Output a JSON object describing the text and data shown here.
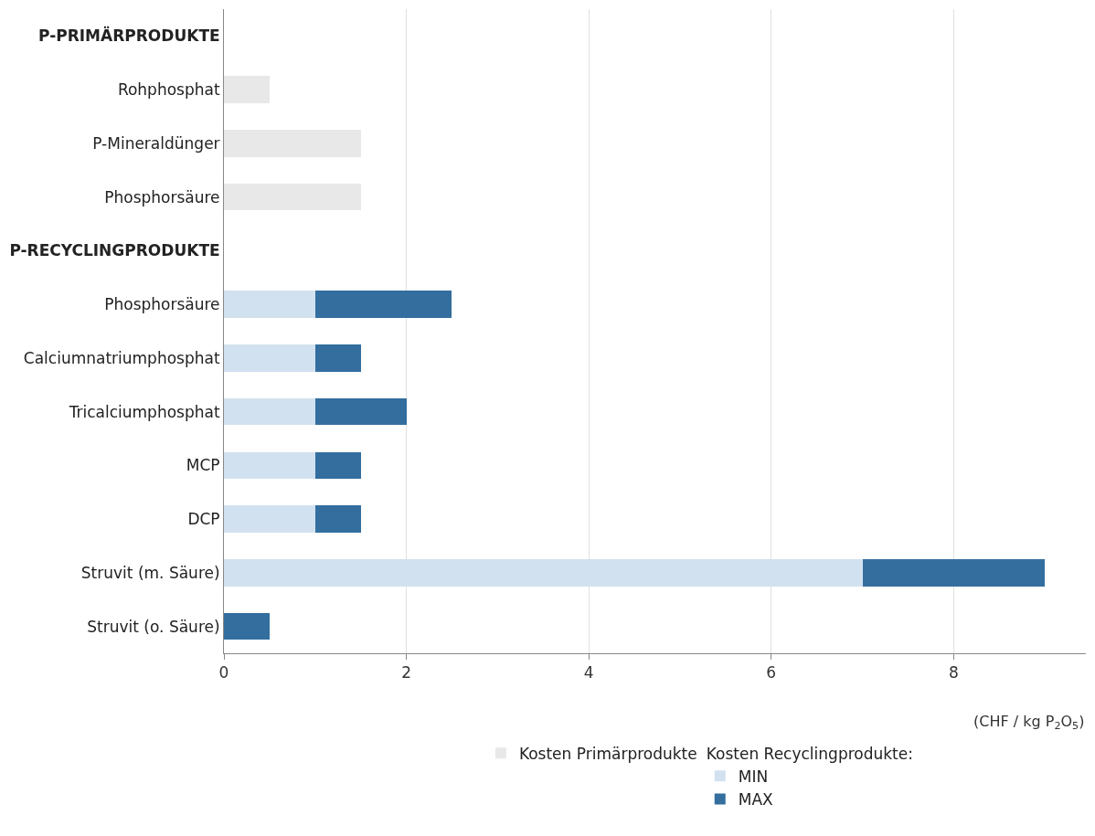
{
  "chart_data": {
    "type": "bar",
    "orientation": "horizontal",
    "stacked": true,
    "categories": [
      "P-PRIMÄRPRODUKTE",
      "Rohphosphat",
      "P-Mineraldünger",
      "Phosphorsäure",
      "P-RECYCLINGPRODUKTE",
      "Phosphorsäure",
      "Calciumnatriumphosphat",
      "Tricalciumphosphat",
      "MCP",
      "DCP",
      "Struvit (m. Säure)",
      "Struvit (o. Säure)"
    ],
    "series": [
      {
        "name": "Kosten Primärprodukte",
        "color": "#e8e8e8",
        "values": [
          null,
          0.5,
          1.5,
          1.5,
          null,
          null,
          null,
          null,
          null,
          null,
          null,
          null
        ]
      },
      {
        "name": "MIN",
        "color": "#d2e1ef",
        "values": [
          null,
          null,
          null,
          null,
          null,
          1,
          1,
          1,
          1,
          1,
          7,
          null
        ]
      },
      {
        "name": "MAX",
        "color": "#336e9f",
        "values": [
          null,
          null,
          null,
          null,
          null,
          1.5,
          0.5,
          1,
          0.5,
          0.5,
          2,
          0.5
        ]
      }
    ],
    "legend_title": "Kosten Recyclingprodukte:",
    "xlabel": "(CHF / kg P$_{2}$O$_{5}$)",
    "xlim": [
      0,
      9.45
    ],
    "xticks": [
      0,
      2,
      4,
      6,
      8
    ],
    "grid": "x",
    "legend": "bottom"
  }
}
